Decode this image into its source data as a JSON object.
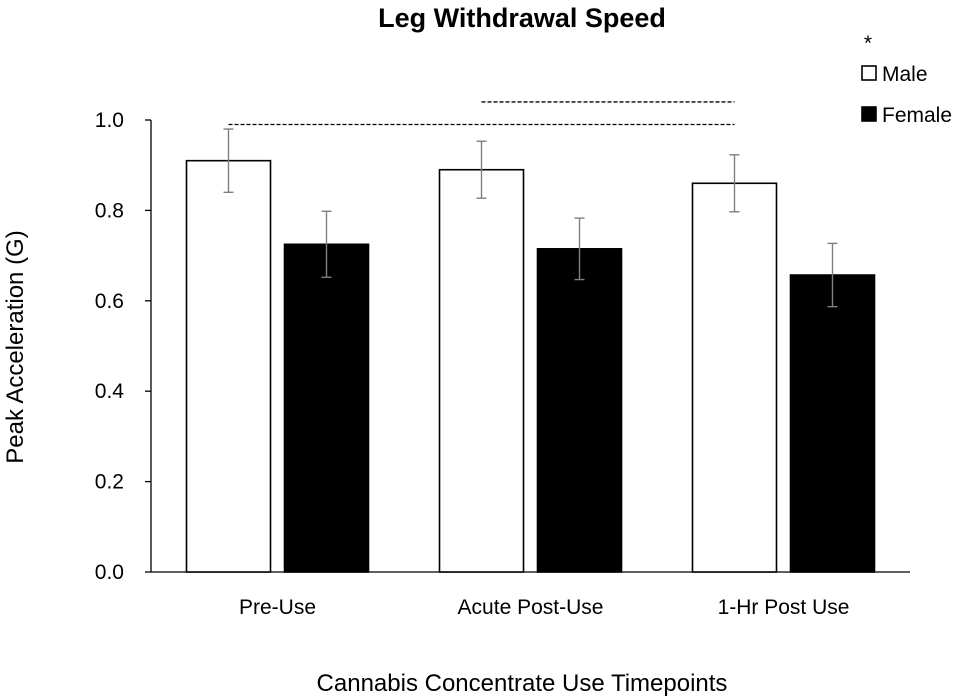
{
  "chart_data": {
    "type": "bar",
    "title": "Leg Withdrawal Speed",
    "xlabel": "Cannabis Concentrate Use Timepoints",
    "ylabel": "Peak Acceleration (G)",
    "categories": [
      "Pre-Use",
      "Acute Post-Use",
      "1-Hr Post Use"
    ],
    "ylim": [
      0,
      1.0
    ],
    "yticks": [
      "0.0",
      "0.2",
      "0.4",
      "0.6",
      "0.8",
      "1.0"
    ],
    "grid": false,
    "legend_position": "top-right",
    "significance_marker": "*",
    "series": [
      {
        "name": "Male",
        "color": "#ffffff",
        "stroke": "#000000",
        "values": [
          0.91,
          0.89,
          0.86
        ],
        "error": [
          0.07,
          0.063,
          0.063
        ]
      },
      {
        "name": "Female",
        "color": "#000000",
        "stroke": "#000000",
        "values": [
          0.725,
          0.715,
          0.657
        ],
        "error": [
          0.073,
          0.068,
          0.07
        ]
      }
    ],
    "significance_brackets": [
      {
        "from_category": 0,
        "to_category": 2,
        "y": 0.99
      },
      {
        "from_category": 1,
        "to_category": 2,
        "y": 1.04
      }
    ]
  }
}
